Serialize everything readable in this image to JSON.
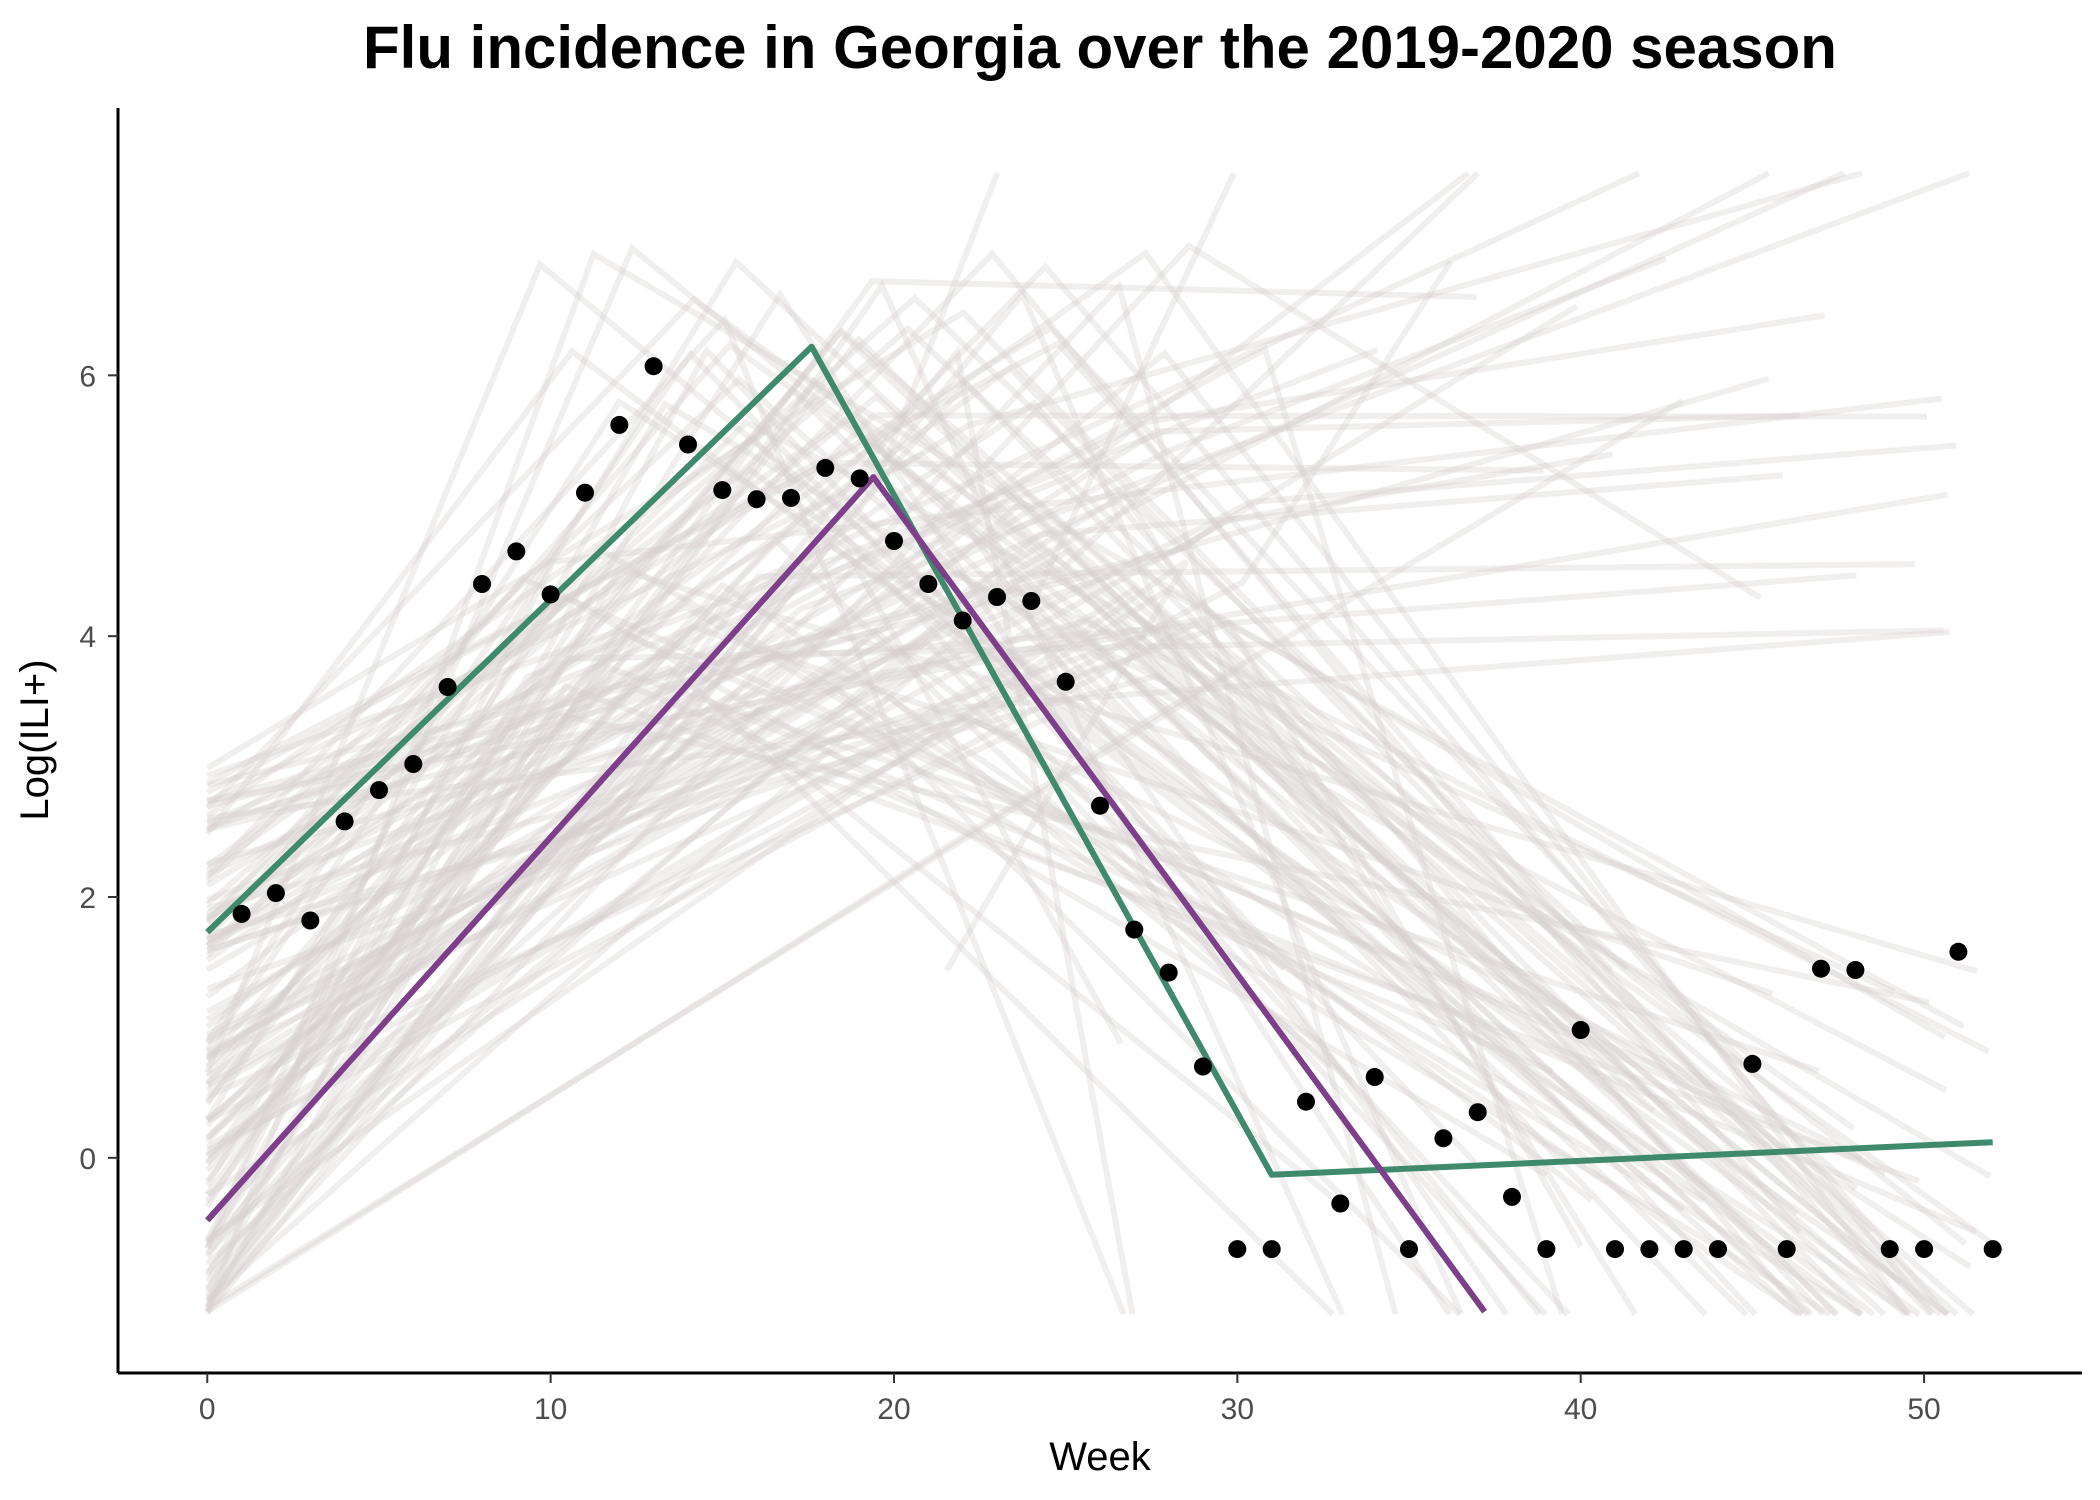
{
  "chart_data": {
    "type": "line",
    "title": "Flu incidence in Georgia over the 2019-2020 season",
    "xlabel": "Week",
    "ylabel": "Log(ILI+)",
    "xlim": [
      -2.6,
      54.6
    ],
    "ylim": [
      -1.65,
      8.05
    ],
    "xticks": [
      0,
      10,
      20,
      30,
      40,
      50
    ],
    "yticks": [
      0,
      2,
      4,
      6
    ],
    "grid": false,
    "legend": "none",
    "colors": {
      "observed": "#000000",
      "fit_green": "#3f8a6c",
      "fit_purple": "#7e3f8a",
      "samples": "#d7cdcd"
    },
    "observed": {
      "x": [
        1,
        2,
        3,
        4,
        5,
        6,
        7,
        8,
        9,
        10,
        11,
        12,
        13,
        14,
        15,
        16,
        17,
        18,
        19,
        20,
        21,
        22,
        23,
        24,
        25,
        26,
        27,
        28,
        29,
        30,
        31,
        32,
        33,
        34,
        35,
        36,
        37,
        38,
        39,
        40,
        41,
        42,
        43,
        44,
        45,
        46,
        47,
        48,
        49,
        50,
        51,
        52
      ],
      "y": [
        1.87,
        2.03,
        1.82,
        2.58,
        2.82,
        3.02,
        3.61,
        4.4,
        4.65,
        4.32,
        5.1,
        5.62,
        6.07,
        5.47,
        5.12,
        5.05,
        5.06,
        5.29,
        5.21,
        4.73,
        4.4,
        4.12,
        4.3,
        4.27,
        3.65,
        2.7,
        1.75,
        1.42,
        0.7,
        -0.7,
        -0.7,
        0.43,
        -0.35,
        0.62,
        -0.7,
        0.15,
        0.35,
        -0.3,
        -0.7,
        0.98,
        -0.7,
        -0.7,
        -0.7,
        -0.7,
        0.72,
        -0.7,
        1.45,
        1.44,
        -0.7,
        -0.7,
        1.58,
        -0.7
      ]
    },
    "series": [
      {
        "x": [
          0,
          17.6,
          31,
          52
        ],
        "y": [
          1.73,
          6.22,
          -0.13,
          0.12
        ]
      },
      {
        "x": [
          0,
          19.4,
          37.2
        ],
        "y": [
          -0.48,
          5.22,
          -1.18
        ]
      }
    ],
    "samples_note_count": 120
  }
}
